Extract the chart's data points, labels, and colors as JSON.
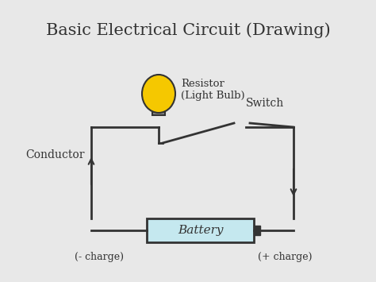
{
  "title": "Basic Electrical Circuit (Drawing)",
  "bg_color": "#e8e8e8",
  "title_fontsize": 15,
  "circuit_color": "#333333",
  "battery_fill": "#c5e8ef",
  "battery_text": "Battery",
  "bulb_fill": "#f5c800",
  "bulb_base_fill": "#888888",
  "switch_label": "Switch",
  "resistor_label": "Resistor\n(Light Bulb)",
  "conductor_label": "Conductor",
  "neg_label": "(- charge)",
  "pos_label": "(+ charge)",
  "circuit_lw": 2.0
}
